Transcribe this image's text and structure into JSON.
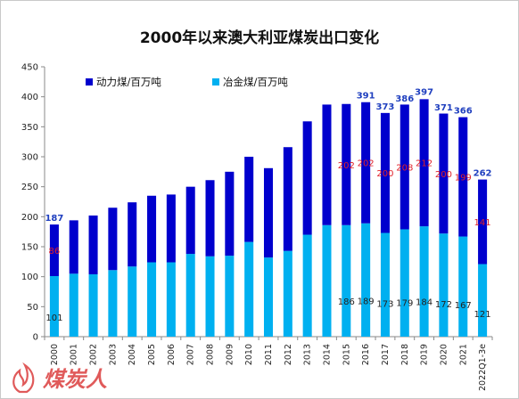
{
  "chart_data": {
    "type": "bar",
    "stacked": true,
    "title": "2000年以来澳大利亚煤炭出口变化",
    "xlabel": "",
    "ylabel": "",
    "ylim": [
      0,
      450
    ],
    "yticks": [
      0,
      50,
      100,
      150,
      200,
      250,
      300,
      350,
      400,
      450
    ],
    "grid": false,
    "legend_position": "top-left",
    "categories": [
      "2000",
      "2001",
      "2002",
      "2003",
      "2004",
      "2005",
      "2006",
      "2007",
      "2008",
      "2009",
      "2010",
      "2011",
      "2012",
      "2013",
      "2014",
      "2015",
      "2016",
      "2017",
      "2018",
      "2019",
      "2020",
      "2021",
      "2022Q1-3e"
    ],
    "series": [
      {
        "name": "冶金煤/百万吨",
        "color": "#00b0f0",
        "values": [
          101,
          105,
          104,
          111,
          117,
          124,
          124,
          138,
          134,
          135,
          158,
          132,
          143,
          170,
          186,
          186,
          189,
          173,
          179,
          184,
          172,
          167,
          121
        ]
      },
      {
        "name": "动力煤/百万吨",
        "color": "#0000cd",
        "values": [
          86,
          89,
          98,
          104,
          107,
          111,
          113,
          112,
          127,
          140,
          142,
          149,
          173,
          189,
          201,
          202,
          202,
          200,
          208,
          212,
          200,
          199,
          141
        ]
      }
    ],
    "totals": [
      187,
      194,
      202,
      215,
      224,
      235,
      237,
      250,
      261,
      275,
      300,
      281,
      316,
      359,
      387,
      388,
      391,
      373,
      386,
      397,
      371,
      366,
      262
    ],
    "labels": {
      "total": [
        {
          "category": "2000",
          "text": "187"
        },
        {
          "category": "2016",
          "text": "391"
        },
        {
          "category": "2017",
          "text": "373"
        },
        {
          "category": "2018",
          "text": "386"
        },
        {
          "category": "2019",
          "text": "397"
        },
        {
          "category": "2020",
          "text": "371"
        },
        {
          "category": "2021",
          "text": "366"
        },
        {
          "category": "2022Q1-3e",
          "text": "262"
        }
      ],
      "thermal": [
        {
          "category": "2000",
          "text": "86"
        },
        {
          "category": "2015",
          "text": "202"
        },
        {
          "category": "2016",
          "text": "202"
        },
        {
          "category": "2017",
          "text": "200"
        },
        {
          "category": "2018",
          "text": "208"
        },
        {
          "category": "2019",
          "text": "212"
        },
        {
          "category": "2020",
          "text": "200"
        },
        {
          "category": "2021",
          "text": "199"
        },
        {
          "category": "2022Q1-3e",
          "text": "141"
        }
      ],
      "metallurgical": [
        {
          "category": "2000",
          "text": "101"
        },
        {
          "category": "2015",
          "text": "186"
        },
        {
          "category": "2016",
          "text": "189"
        },
        {
          "category": "2017",
          "text": "173"
        },
        {
          "category": "2018",
          "text": "179"
        },
        {
          "category": "2019",
          "text": "184"
        },
        {
          "category": "2020",
          "text": "172"
        },
        {
          "category": "2021",
          "text": "167"
        },
        {
          "category": "2022Q1-3e",
          "text": "121"
        }
      ]
    },
    "label_colors": {
      "total": "#1f3fbf",
      "thermal": "#e0202a",
      "metallurgical": "#222222"
    }
  },
  "watermark": {
    "text": "煤炭人",
    "color": "#e05a5a"
  }
}
